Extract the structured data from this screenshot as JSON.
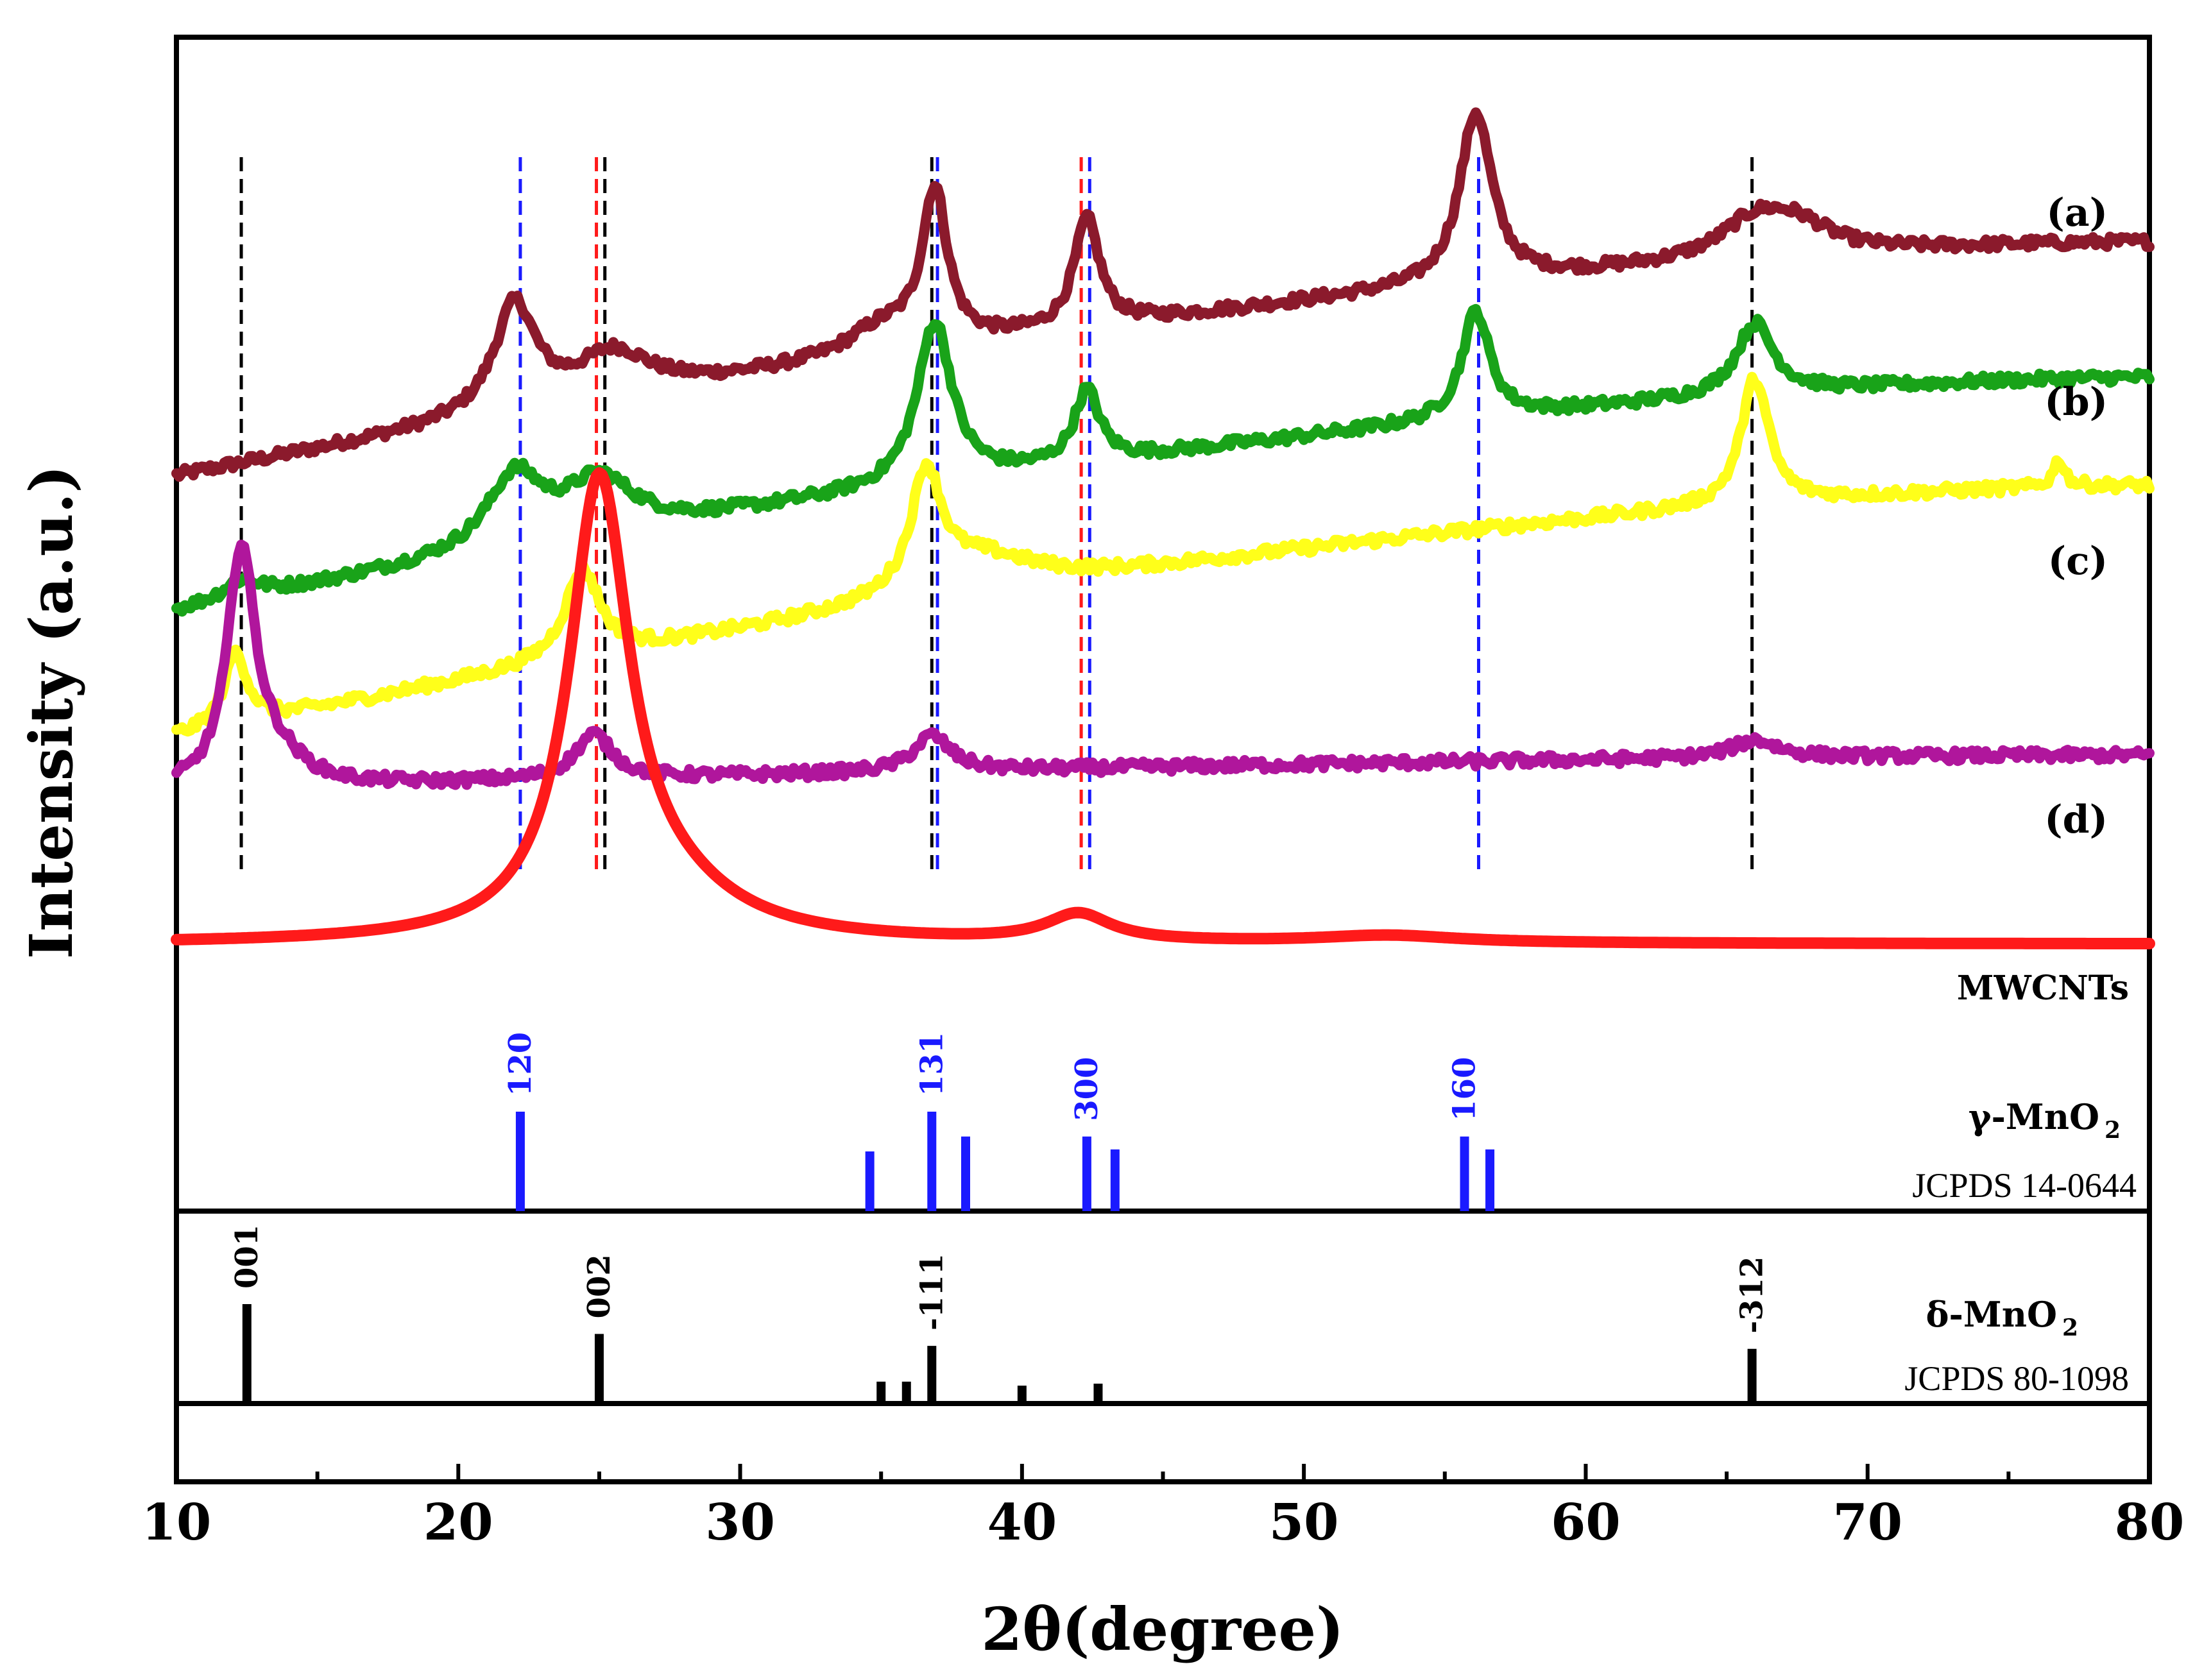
{
  "chart_data": {
    "type": "line",
    "xlabel": "2θ(degree)",
    "ylabel": "Intensity (a.u.)",
    "xlim": [
      10,
      80
    ],
    "xticks": [
      "10",
      "20",
      "30",
      "40",
      "50",
      "60",
      "70",
      "80"
    ],
    "colors": {
      "a": "#8b1a2c",
      "b": "#19a319",
      "c": "#ffff1a",
      "d": "#b0169c",
      "mwcnt": "#ff1a1a",
      "gamma": "#1a1aff",
      "delta": "#000000"
    },
    "series": [
      {
        "key": "a",
        "name": "(a)",
        "color": "#8b1a2c",
        "base_start": 62,
        "base_end": 88,
        "peaks": [
          [
            22,
            12,
            0.9
          ],
          [
            25.5,
            5,
            1.6
          ],
          [
            35,
            3,
            1.5
          ],
          [
            36.9,
            17,
            0.55
          ],
          [
            42.3,
            12,
            0.55
          ],
          [
            56.1,
            19,
            0.7
          ],
          [
            66,
            4,
            1.5
          ],
          [
            67.5,
            3,
            1.5
          ]
        ]
      },
      {
        "key": "b",
        "name": "(b)",
        "color": "#19a319",
        "base_start": 47,
        "base_end": 73,
        "peaks": [
          [
            12.3,
            2,
            0.8
          ],
          [
            22,
            8,
            1.2
          ],
          [
            25,
            6,
            1.5
          ],
          [
            36.9,
            18,
            0.75
          ],
          [
            42.3,
            8,
            0.55
          ],
          [
            56.1,
            12,
            0.6
          ],
          [
            66,
            8,
            0.8
          ]
        ]
      },
      {
        "key": "c",
        "name": "(c)",
        "color": "#ffff1a",
        "base_start": 33,
        "base_end": 61,
        "peaks": [
          [
            12.1,
            8,
            0.5
          ],
          [
            24.4,
            10,
            0.75
          ],
          [
            36.6,
            13,
            0.65
          ],
          [
            38.5,
            4,
            2.5
          ],
          [
            66,
            14,
            0.6
          ],
          [
            76.8,
            3,
            0.25
          ]
        ]
      },
      {
        "key": "d",
        "name": "(d)",
        "color": "#b0169c",
        "base_start": 27,
        "base_end": 31,
        "peaks": [
          [
            12.3,
            26,
            0.6
          ],
          [
            13.5,
            3,
            1.2
          ],
          [
            24.8,
            5,
            0.8
          ],
          [
            36.8,
            4,
            0.8
          ],
          [
            66,
            2,
            1
          ]
        ]
      },
      {
        "key": "mwcnt",
        "name": "MWCNTs",
        "color": "#ff1a1a",
        "base_start": 10,
        "base_end": 10,
        "peaks": [
          [
            25,
            50,
            1.3
          ],
          [
            27.5,
            4,
            3
          ],
          [
            42,
            3,
            1.4
          ],
          [
            53,
            0.8,
            3
          ]
        ]
      }
    ],
    "reference_lines": [
      {
        "x": 12.3,
        "color": "#000000"
      },
      {
        "x": 22.2,
        "color": "#1a1aff"
      },
      {
        "x": 24.9,
        "color": "#ff1a1a"
      },
      {
        "x": 25.2,
        "color": "#000000"
      },
      {
        "x": 36.8,
        "color": "#000000"
      },
      {
        "x": 37.0,
        "color": "#1a1aff"
      },
      {
        "x": 42.1,
        "color": "#ff1a1a"
      },
      {
        "x": 42.4,
        "color": "#1a1aff"
      },
      {
        "x": 56.2,
        "color": "#1a1aff"
      },
      {
        "x": 65.9,
        "color": "#000000"
      }
    ],
    "gamma_mno2": {
      "name": "γ-MnO2",
      "name_main": "γ-MnO",
      "name_sub": "2",
      "card": "JCPDS 14-0644",
      "sticks": [
        [
          22.2,
          100,
          "120"
        ],
        [
          34.6,
          60,
          ""
        ],
        [
          36.8,
          100,
          "131"
        ],
        [
          38.0,
          75,
          ""
        ],
        [
          42.3,
          75,
          "300"
        ],
        [
          43.3,
          62,
          ""
        ],
        [
          55.7,
          75,
          "160"
        ],
        [
          56.6,
          62,
          ""
        ]
      ]
    },
    "delta_mno2": {
      "name": "δ-MnO2",
      "name_main": "δ-MnO",
      "name_sub": "2",
      "card": "JCPDS 80-1098",
      "sticks": [
        [
          12.5,
          100,
          "001"
        ],
        [
          25.0,
          70,
          "002"
        ],
        [
          35.0,
          22,
          ""
        ],
        [
          35.9,
          22,
          ""
        ],
        [
          36.8,
          58,
          "-111"
        ],
        [
          40.0,
          18,
          ""
        ],
        [
          42.7,
          20,
          ""
        ],
        [
          65.9,
          55,
          "-312"
        ]
      ]
    }
  }
}
